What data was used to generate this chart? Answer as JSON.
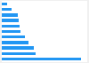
{
  "values": [
    46241,
    19724,
    18931,
    15436,
    13533,
    10908,
    10298,
    9803,
    9160,
    5600,
    3200
  ],
  "bar_color": "#2196F3",
  "background_color": "#f0f0f0",
  "plot_background": "#ffffff",
  "xlim": [
    0,
    50000
  ],
  "bar_height": 0.55,
  "figsize": [
    1.0,
    0.71
  ],
  "dpi": 100
}
